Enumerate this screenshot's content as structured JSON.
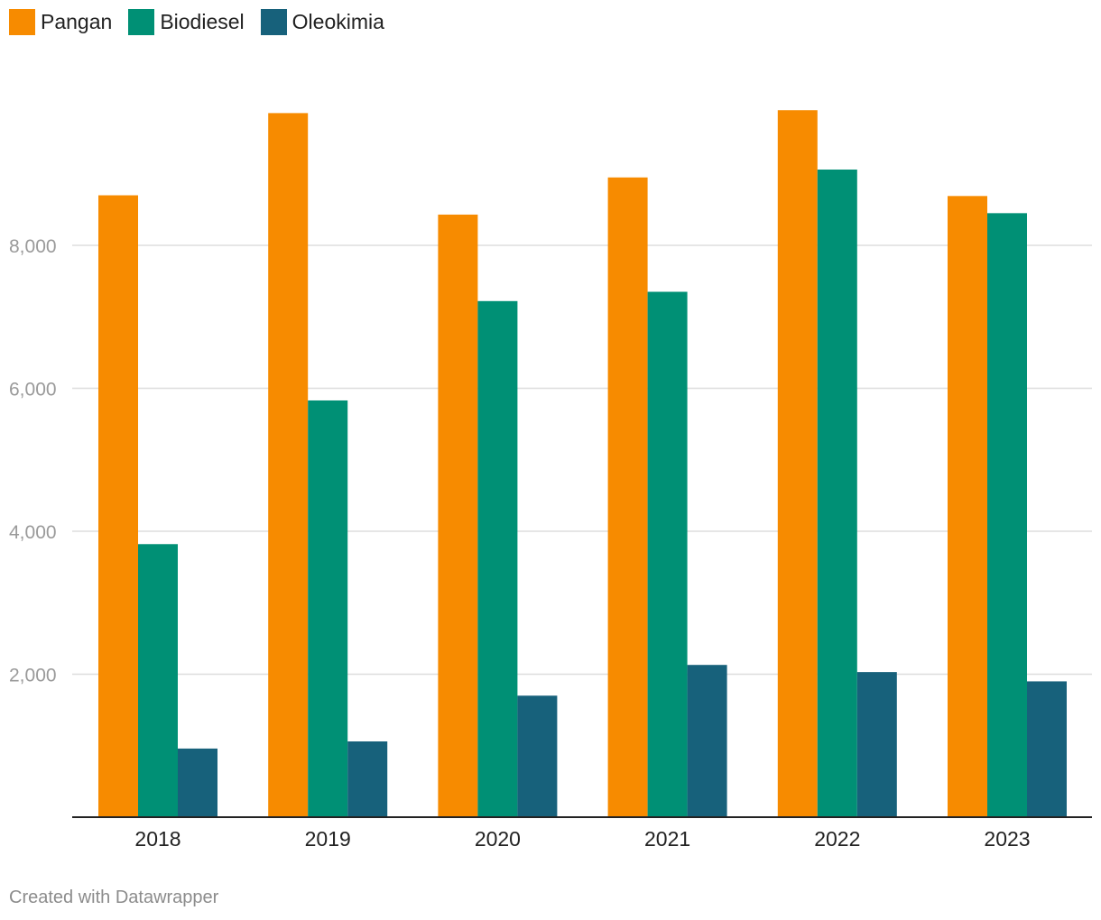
{
  "chart_data": {
    "type": "bar",
    "title": "",
    "xlabel": "",
    "ylabel": "",
    "categories": [
      "2018",
      "2019",
      "2020",
      "2021",
      "2022",
      "2023"
    ],
    "series": [
      {
        "name": "Pangan",
        "color": "#f78b00",
        "values": [
          8700,
          9850,
          8430,
          8950,
          9890,
          8690
        ]
      },
      {
        "name": "Biodiesel",
        "color": "#009075",
        "values": [
          3820,
          5830,
          7220,
          7350,
          9060,
          8450
        ]
      },
      {
        "name": "Oleokimia",
        "color": "#17617b",
        "values": [
          960,
          1060,
          1700,
          2130,
          2030,
          1900
        ]
      }
    ],
    "ylim": [
      0,
      10500
    ],
    "yticks": [
      2000,
      4000,
      6000,
      8000
    ],
    "ytick_labels": [
      "2,000",
      "4,000",
      "6,000",
      "8,000"
    ],
    "grid": true,
    "legend_position": "top-left"
  },
  "footer": {
    "credit": "Created with Datawrapper"
  }
}
